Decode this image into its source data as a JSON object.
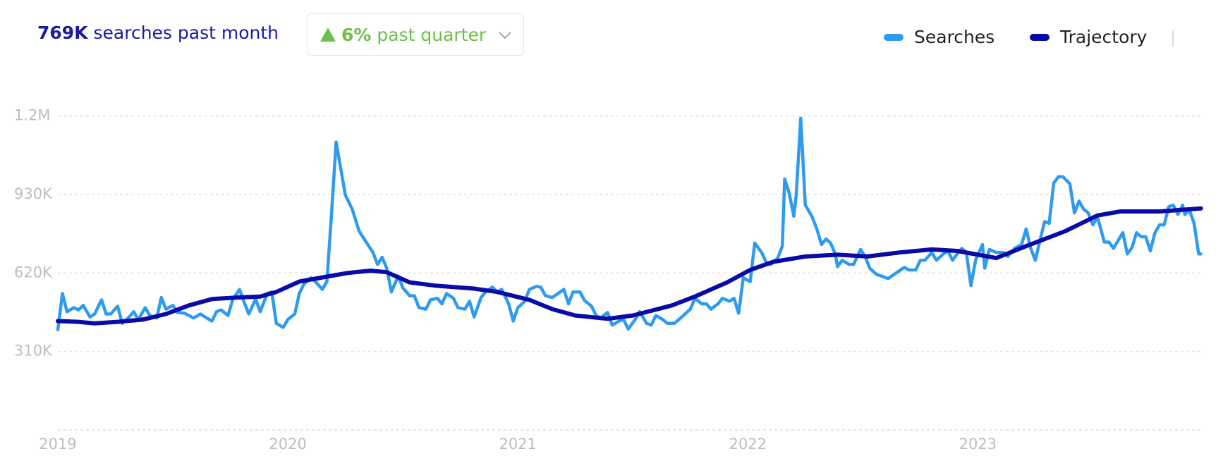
{
  "header": {
    "volume": "769K",
    "volume_text": "searches past month",
    "growth": "6%",
    "growth_text": "past quarter"
  },
  "chart_data": {
    "type": "line",
    "xlim": [
      2019,
      2023.98
    ],
    "xticks": [
      2019,
      2020,
      2021,
      2022,
      2023
    ],
    "ylim": [
      0,
      1300000
    ],
    "yticks": [
      {
        "value": 310000,
        "label": "310K"
      },
      {
        "value": 620000,
        "label": "620K"
      },
      {
        "value": 930000,
        "label": "930K"
      },
      {
        "value": 1240000,
        "label": "1.2M"
      }
    ],
    "grid": true,
    "legend": "top-right",
    "series": [
      {
        "name": "Searches",
        "color": "#2e9bf0",
        "x": [
          2019,
          2019.02,
          2019.04,
          2019.07,
          2019.09,
          2019.11,
          2019.14,
          2019.16,
          2019.19,
          2019.21,
          2019.23,
          2019.26,
          2019.28,
          2019.31,
          2019.33,
          2019.35,
          2019.38,
          2019.4,
          2019.43,
          2019.45,
          2019.47,
          2019.5,
          2019.52,
          2019.55,
          2019.57,
          2019.59,
          2019.62,
          2019.64,
          2019.67,
          2019.69,
          2019.71,
          2019.74,
          2019.76,
          2019.79,
          2019.81,
          2019.83,
          2019.86,
          2019.88,
          2019.91,
          2019.93,
          2019.95,
          2019.98,
          2020,
          2020.03,
          2020.05,
          2020.07,
          2020.1,
          2020.12,
          2020.15,
          2020.17,
          2020.19,
          2020.21,
          2020.25,
          2020.28,
          2020.31,
          2020.35,
          2020.37,
          2020.39,
          2020.41,
          2020.43,
          2020.45,
          2020.48,
          2020.5,
          2020.53,
          2020.55,
          2020.57,
          2020.6,
          2020.62,
          2020.65,
          2020.67,
          2020.69,
          2020.72,
          2020.74,
          2020.77,
          2020.79,
          2020.81,
          2020.84,
          2020.86,
          2020.89,
          2020.91,
          2020.93,
          2020.96,
          2020.98,
          2021,
          2021.03,
          2021.05,
          2021.08,
          2021.1,
          2021.12,
          2021.15,
          2021.17,
          2021.2,
          2021.22,
          2021.24,
          2021.27,
          2021.29,
          2021.32,
          2021.34,
          2021.36,
          2021.39,
          2021.41,
          2021.44,
          2021.46,
          2021.48,
          2021.51,
          2021.53,
          2021.56,
          2021.58,
          2021.6,
          2021.63,
          2021.65,
          2021.68,
          2021.7,
          2021.72,
          2021.75,
          2021.77,
          2021.8,
          2021.82,
          2021.84,
          2021.87,
          2021.89,
          2021.92,
          2021.94,
          2021.96,
          2021.98,
          2022.01,
          2022.03,
          2022.06,
          2022.08,
          2022.1,
          2022.13,
          2022.15,
          2022.16,
          2022.18,
          2022.2,
          2022.21,
          2022.23,
          2022.25,
          2022.28,
          2022.3,
          2022.32,
          2022.34,
          2022.36,
          2022.38,
          2022.39,
          2022.41,
          2022.44,
          2022.46,
          2022.49,
          2022.51,
          2022.53,
          2022.56,
          2022.58,
          2022.61,
          2022.63,
          2022.65,
          2022.68,
          2022.7,
          2022.73,
          2022.75,
          2022.77,
          2022.8,
          2022.82,
          2022.85,
          2022.87,
          2022.89,
          2022.91,
          2022.93,
          2022.95,
          2022.97,
          2022.99,
          2023.02,
          2023.03,
          2023.05,
          2023.08,
          2023.11,
          2023.13,
          2023.16,
          2023.19,
          2023.21,
          2023.23,
          2023.25,
          2023.27,
          2023.29,
          2023.31,
          2023.33,
          2023.35,
          2023.37,
          2023.4,
          2023.42,
          2023.44,
          2023.46,
          2023.48,
          2023.5,
          2023.52,
          2023.55,
          2023.57,
          2023.59,
          2023.61,
          2023.63,
          2023.65,
          2023.67,
          2023.69,
          2023.71,
          2023.73,
          2023.75,
          2023.77,
          2023.79,
          2023.81,
          2023.83,
          2023.85,
          2023.87,
          2023.89,
          2023.9,
          2023.92,
          2023.94,
          2023.96,
          2023.97
        ],
        "values": [
          396000,
          539000,
          467000,
          483000,
          474000,
          492000,
          446000,
          458000,
          514000,
          458000,
          458000,
          489000,
          421000,
          446000,
          467000,
          436000,
          483000,
          452000,
          442000,
          523000,
          477000,
          492000,
          464000,
          461000,
          452000,
          442000,
          458000,
          446000,
          430000,
          467000,
          474000,
          452000,
          514000,
          555000,
          505000,
          458000,
          517000,
          467000,
          539000,
          545000,
          421000,
          405000,
          436000,
          458000,
          539000,
          576000,
          601000,
          586000,
          555000,
          586000,
          857000,
          1137000,
          928000,
          872000,
          785000,
          729000,
          701000,
          654000,
          682000,
          639000,
          545000,
          608000,
          561000,
          530000,
          530000,
          483000,
          477000,
          514000,
          520000,
          498000,
          539000,
          520000,
          483000,
          477000,
          508000,
          446000,
          523000,
          545000,
          564000,
          545000,
          555000,
          498000,
          430000,
          483000,
          508000,
          555000,
          567000,
          564000,
          530000,
          523000,
          536000,
          555000,
          498000,
          545000,
          545000,
          511000,
          489000,
          452000,
          442000,
          464000,
          414000,
          430000,
          436000,
          399000,
          436000,
          467000,
          421000,
          414000,
          452000,
          436000,
          421000,
          421000,
          436000,
          452000,
          477000,
          520000,
          498000,
          498000,
          477000,
          498000,
          520000,
          508000,
          520000,
          461000,
          601000,
          586000,
          738000,
          701000,
          661000,
          654000,
          679000,
          726000,
          991000,
          935000,
          844000,
          925000,
          1231000,
          888000,
          841000,
          794000,
          732000,
          754000,
          738000,
          695000,
          645000,
          670000,
          654000,
          654000,
          713000,
          685000,
          639000,
          614000,
          608000,
          598000,
          611000,
          623000,
          642000,
          632000,
          632000,
          670000,
          670000,
          701000,
          670000,
          695000,
          707000,
          670000,
          695000,
          717000,
          701000,
          570000,
          670000,
          732000,
          639000,
          713000,
          701000,
          701000,
          685000,
          717000,
          732000,
          794000,
          717000,
          670000,
          748000,
          823000,
          816000,
          975000,
          1000000,
          1000000,
          972000,
          857000,
          904000,
          872000,
          857000,
          810000,
          841000,
          742000,
          742000,
          717000,
          748000,
          779000,
          695000,
          720000,
          779000,
          763000,
          763000,
          707000,
          779000,
          810000,
          810000,
          882000,
          888000,
          851000,
          888000,
          851000,
          869000,
          816000,
          695000,
          695000
        ]
      },
      {
        "name": "Trajectory",
        "color": "#0a0aa8",
        "x": [
          2019,
          2019.09,
          2019.16,
          2019.26,
          2019.37,
          2019.47,
          2019.57,
          2019.67,
          2019.78,
          2019.88,
          2019.95,
          2020.05,
          2020.16,
          2020.26,
          2020.36,
          2020.43,
          2020.53,
          2020.64,
          2020.81,
          2020.91,
          2021.05,
          2021.15,
          2021.25,
          2021.39,
          2021.5,
          2021.67,
          2021.77,
          2021.91,
          2022.01,
          2022.11,
          2022.25,
          2022.39,
          2022.52,
          2022.66,
          2022.8,
          2022.91,
          2023.08,
          2023.21,
          2023.38,
          2023.52,
          2023.62,
          2023.79,
          2023.97
        ],
        "values": [
          430000,
          427000,
          421000,
          427000,
          436000,
          458000,
          492000,
          517000,
          523000,
          527000,
          545000,
          586000,
          604000,
          620000,
          629000,
          623000,
          583000,
          570000,
          558000,
          545000,
          514000,
          477000,
          452000,
          439000,
          452000,
          492000,
          527000,
          583000,
          632000,
          664000,
          685000,
          692000,
          685000,
          701000,
          713000,
          707000,
          679000,
          726000,
          785000,
          847000,
          863000,
          863000,
          875000
        ]
      }
    ]
  }
}
